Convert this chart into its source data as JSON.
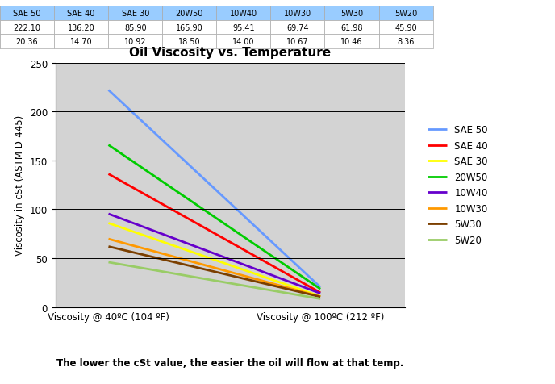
{
  "title": "Oil Viscosity vs. Temperature",
  "xlabel_subtitle": "The lower the cSt value, the easier the oil will flow at that temp.",
  "ylabel": "Viscosity in cSt (ASTM D-445)",
  "x_labels": [
    "Viscosity @ 40ºC (104 ºF)",
    "Viscosity @ 100ºC (212 ºF)"
  ],
  "ylim": [
    0,
    250
  ],
  "yticks": [
    0,
    50,
    100,
    150,
    200,
    250
  ],
  "series": [
    {
      "label": "SAE 50",
      "color": "#6699FF",
      "v40": 222.1,
      "v100": 20.36
    },
    {
      "label": "SAE 40",
      "color": "#FF0000",
      "v40": 136.2,
      "v100": 14.7
    },
    {
      "label": "SAE 30",
      "color": "#FFFF00",
      "v40": 85.9,
      "v100": 10.92
    },
    {
      "label": "20W50",
      "color": "#00CC00",
      "v40": 165.9,
      "v100": 18.5
    },
    {
      "label": "10W40",
      "color": "#6600CC",
      "v40": 95.41,
      "v100": 14.0
    },
    {
      "label": "10W30",
      "color": "#FF9900",
      "v40": 69.74,
      "v100": 10.67
    },
    {
      "label": "5W30",
      "color": "#7B3F00",
      "v40": 61.98,
      "v100": 10.46
    },
    {
      "label": "5W20",
      "color": "#99CC66",
      "v40": 45.9,
      "v100": 8.36
    }
  ],
  "table_header_bg": "#99CCFF",
  "table_col_labels": [
    "SAE 50",
    "SAE 40",
    "SAE 30",
    "20W50",
    "10W40",
    "10W30",
    "5W30",
    "5W20"
  ],
  "table_v40": [
    222.1,
    136.2,
    85.9,
    165.9,
    95.41,
    69.74,
    61.98,
    45.9
  ],
  "table_v100": [
    20.36,
    14.7,
    10.92,
    18.5,
    14.0,
    10.67,
    10.46,
    8.36
  ],
  "plot_bg": "#D3D3D3",
  "fig_bg": "#FFFFFF",
  "linewidth": 2.0,
  "legend_fontsize": 8.5,
  "title_fontsize": 11,
  "table_fontsize": 7.0
}
